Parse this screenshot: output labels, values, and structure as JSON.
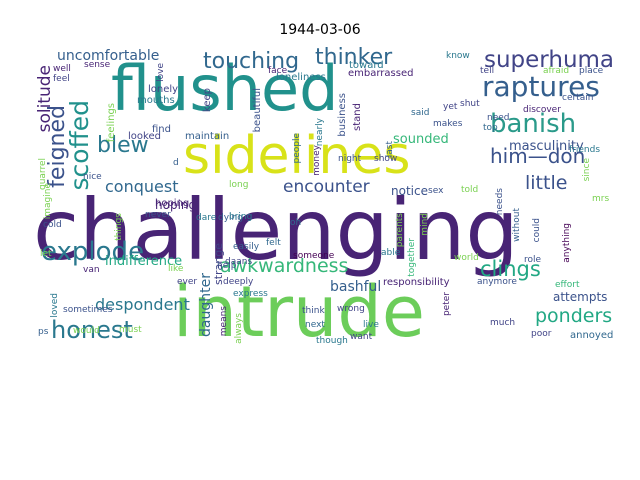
{
  "title": "1944-03-06",
  "palette": [
    "#440154",
    "#482475",
    "#414487",
    "#355f8d",
    "#2a788e",
    "#21918c",
    "#22a884",
    "#44bf70",
    "#7ad151",
    "#bddf26",
    "#fde725"
  ],
  "words": [
    {
      "text": "challenging",
      "color": "#482475"
    },
    {
      "text": "intrude",
      "color": "#6ccd5a"
    },
    {
      "text": "flushed",
      "color": "#21918c"
    },
    {
      "text": "sidelines",
      "color": "#d8e219"
    },
    {
      "text": "raptures",
      "color": "#355f8d"
    },
    {
      "text": "banish",
      "color": "#2a9a8a"
    },
    {
      "text": "superhuman",
      "color": "#414487"
    },
    {
      "text": "touching",
      "color": "#31688e"
    },
    {
      "text": "thinker",
      "color": "#31688e"
    },
    {
      "text": "blew",
      "color": "#2a788e"
    },
    {
      "text": "scoffed",
      "color": "#21918c"
    },
    {
      "text": "feigned",
      "color": "#3b528b"
    },
    {
      "text": "solitude",
      "color": "#482475"
    },
    {
      "text": "explode",
      "color": "#2a788e"
    },
    {
      "text": "honest",
      "color": "#2a788e"
    },
    {
      "text": "awkwardness",
      "color": "#35b779"
    },
    {
      "text": "encounter",
      "color": "#3b528b"
    },
    {
      "text": "him—don",
      "color": "#3b528b"
    },
    {
      "text": "masculinity",
      "color": "#3b528b"
    },
    {
      "text": "little",
      "color": "#3b528b"
    },
    {
      "text": "clings",
      "color": "#22a884"
    },
    {
      "text": "ponders",
      "color": "#22a884"
    },
    {
      "text": "conquest",
      "color": "#31688e"
    },
    {
      "text": "despondent",
      "color": "#2a788e"
    },
    {
      "text": "indifference",
      "color": "#22a884"
    },
    {
      "text": "bashful",
      "color": "#355f8d"
    },
    {
      "text": "hoping",
      "color": "#482475"
    },
    {
      "text": "uncomfortable",
      "color": "#355f8d"
    },
    {
      "text": "attempts",
      "color": "#3b528b"
    },
    {
      "text": "notice",
      "color": "#3b528b"
    },
    {
      "text": "sounded",
      "color": "#35b779"
    },
    {
      "text": "daughter",
      "color": "#31688e"
    },
    {
      "text": "strange",
      "color": "#414487"
    },
    {
      "text": "responsibility",
      "color": "#482475"
    },
    {
      "text": "annoyed",
      "color": "#31688e"
    },
    {
      "text": "loneliness",
      "color": "#2a788e"
    },
    {
      "text": "embarrassed",
      "color": "#482475"
    },
    {
      "text": "toward",
      "color": "#2a788e"
    },
    {
      "text": "looked",
      "color": "#414487"
    },
    {
      "text": "maintain",
      "color": "#355f8d"
    },
    {
      "text": "beautiful",
      "color": "#3b528b"
    },
    {
      "text": "business",
      "color": "#3b528b"
    },
    {
      "text": "nearly",
      "color": "#2a788e"
    },
    {
      "text": "stand",
      "color": "#482475"
    },
    {
      "text": "mouths",
      "color": "#2a788e"
    },
    {
      "text": "feelings",
      "color": "#7ad151"
    },
    {
      "text": "keep",
      "color": "#414487"
    },
    {
      "text": "lonely",
      "color": "#414487"
    },
    {
      "text": "find",
      "color": "#3b528b"
    },
    {
      "text": "hoping",
      "color": "#482475"
    },
    {
      "text": "dying",
      "color": "#355f8d"
    },
    {
      "text": "deeply",
      "color": "#414487"
    },
    {
      "text": "easily",
      "color": "#355f8d"
    },
    {
      "text": "help",
      "color": "#3b528b"
    },
    {
      "text": "express",
      "color": "#2a788e"
    },
    {
      "text": "think",
      "color": "#3b528b"
    },
    {
      "text": "someone",
      "color": "#440154"
    },
    {
      "text": "wrong",
      "color": "#414487"
    },
    {
      "text": "live",
      "color": "#2a788e"
    },
    {
      "text": "next",
      "color": "#31688e"
    },
    {
      "text": "want",
      "color": "#414487"
    },
    {
      "text": "poor",
      "color": "#414487"
    },
    {
      "text": "much",
      "color": "#414487"
    },
    {
      "text": "effort",
      "color": "#35b779"
    },
    {
      "text": "role",
      "color": "#3b528b"
    },
    {
      "text": "anymore",
      "color": "#3b528b"
    },
    {
      "text": "peter",
      "color": "#482475"
    },
    {
      "text": "able",
      "color": "#2a788e"
    },
    {
      "text": "sex",
      "color": "#3b528b"
    },
    {
      "text": "told",
      "color": "#7ad151"
    },
    {
      "text": "needs",
      "color": "#3b528b"
    },
    {
      "text": "without",
      "color": "#355f8d"
    },
    {
      "text": "could",
      "color": "#3b528b"
    },
    {
      "text": "anything",
      "color": "#440154"
    },
    {
      "text": "friends",
      "color": "#2a788e"
    },
    {
      "text": "discover",
      "color": "#482475"
    },
    {
      "text": "certain",
      "color": "#3b528b"
    },
    {
      "text": "need",
      "color": "#3b528b"
    },
    {
      "text": "top",
      "color": "#31688e"
    },
    {
      "text": "shut",
      "color": "#414487"
    },
    {
      "text": "yet",
      "color": "#414487"
    },
    {
      "text": "said",
      "color": "#31688e"
    },
    {
      "text": "since",
      "color": "#7ad151"
    },
    {
      "text": "place",
      "color": "#3b528b"
    },
    {
      "text": "afraid",
      "color": "#7ad151"
    },
    {
      "text": "tell",
      "color": "#414487"
    },
    {
      "text": "know",
      "color": "#2a788e"
    },
    {
      "text": "face",
      "color": "#482475"
    },
    {
      "text": "love",
      "color": "#414487"
    },
    {
      "text": "sense",
      "color": "#482475"
    },
    {
      "text": "feel",
      "color": "#414487"
    },
    {
      "text": "well",
      "color": "#482475"
    },
    {
      "text": "quarrel",
      "color": "#7ad151"
    },
    {
      "text": "nice",
      "color": "#3b528b"
    },
    {
      "text": "cold",
      "color": "#3b528b"
    },
    {
      "text": "never",
      "color": "#3b528b"
    },
    {
      "text": "bring",
      "color": "#2a788e"
    },
    {
      "text": "dare",
      "color": "#2a788e"
    },
    {
      "text": "long",
      "color": "#7ad151"
    },
    {
      "text": "oh",
      "color": "#31688e"
    },
    {
      "text": "felt",
      "color": "#31688e"
    },
    {
      "text": "show",
      "color": "#414487"
    },
    {
      "text": "last",
      "color": "#355f8d"
    },
    {
      "text": "money",
      "color": "#482475"
    },
    {
      "text": "people",
      "color": "#31688e"
    },
    {
      "text": "night",
      "color": "#3b528b"
    },
    {
      "text": "parents",
      "color": "#7ad151"
    },
    {
      "text": "together",
      "color": "#35b779"
    },
    {
      "text": "mind",
      "color": "#7ad151"
    },
    {
      "text": "means",
      "color": "#482475"
    },
    {
      "text": "always",
      "color": "#7ad151"
    },
    {
      "text": "though",
      "color": "#2a788e"
    },
    {
      "text": "ever",
      "color": "#414487"
    },
    {
      "text": "loved",
      "color": "#2a788e"
    },
    {
      "text": "sometimes",
      "color": "#3b528b"
    },
    {
      "text": "van",
      "color": "#482475"
    },
    {
      "text": "world",
      "color": "#7ad151"
    },
    {
      "text": "makes",
      "color": "#3b528b"
    },
    {
      "text": "ps",
      "color": "#355f8d"
    },
    {
      "text": "let",
      "color": "#7ad151"
    },
    {
      "text": "things",
      "color": "#7ad151"
    },
    {
      "text": "like",
      "color": "#7ad151"
    },
    {
      "text": "would",
      "color": "#7ad151"
    },
    {
      "text": "must",
      "color": "#7ad151"
    },
    {
      "text": "imagine",
      "color": "#7ad151"
    },
    {
      "text": "mrs",
      "color": "#7ad151"
    },
    {
      "text": "d",
      "color": "#355f8d"
    },
    {
      "text": "daans",
      "color": "#414487"
    }
  ]
}
